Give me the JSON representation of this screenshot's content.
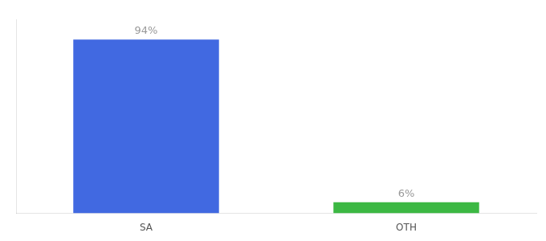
{
  "chart_data": {
    "type": "bar",
    "categories": [
      "SA",
      "OTH"
    ],
    "values": [
      94,
      6
    ],
    "value_labels": [
      "94%",
      "6%"
    ],
    "colors": [
      "#4169e1",
      "#3cb843"
    ],
    "ylim": [
      0,
      105
    ],
    "grid": false,
    "data_labels": true,
    "tick_labels": "x"
  }
}
